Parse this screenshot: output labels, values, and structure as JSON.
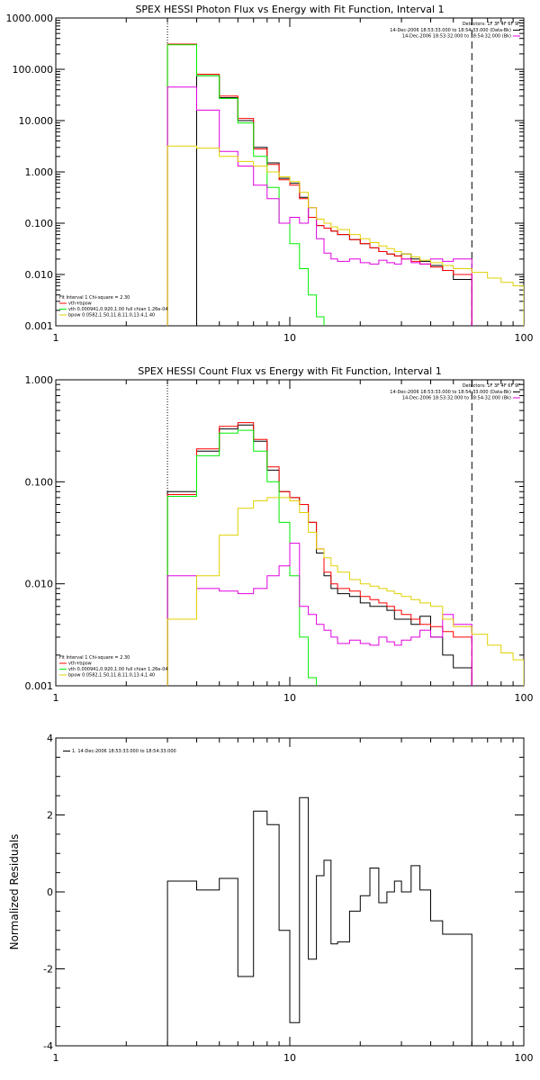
{
  "chart_data": [
    {
      "type": "line",
      "title": "SPEX HESSI Photon Flux vs Energy with Fit Function, Interval 1",
      "xscale": "log",
      "yscale": "log",
      "xlim": [
        1,
        100
      ],
      "ylim": [
        0.001,
        1000
      ],
      "x_ticks": [
        {
          "v": 1,
          "label": "1"
        },
        {
          "v": 10,
          "label": "10"
        },
        {
          "v": 100,
          "label": "100"
        }
      ],
      "y_ticks": [
        {
          "v": 0.001,
          "label": "0.001"
        },
        {
          "v": 0.01,
          "label": "0.010"
        },
        {
          "v": 0.1,
          "label": "0.100"
        },
        {
          "v": 1,
          "label": "1.000"
        },
        {
          "v": 10,
          "label": "10.000"
        },
        {
          "v": 100,
          "label": "100.000"
        },
        {
          "v": 1000,
          "label": "1000.000"
        }
      ],
      "dotted_line_x": 3,
      "dashed_line_x": 60,
      "legend_top": {
        "detectors": "Detectors: 1F 3F 4F 6F 9F",
        "entries": [
          {
            "text": "14-Dec-2006 18:53:33.000 to 18:54:33.000 (Data-Bk)",
            "color": "#000000"
          },
          {
            "text": "14-Dec-2006 18:53:32.000 to 18:54:32.000 (Bk)",
            "color": "#e000e0"
          }
        ]
      },
      "legend_bottom": {
        "header": "Fit Interval 1    Chi-square = 2.30",
        "entries": [
          {
            "text": "vth+bpow",
            "color": "#ff0000"
          },
          {
            "text": "vth 0.000941,0.920,1.00  full chian 1.26e-04",
            "color": "#00ee00"
          },
          {
            "text": "bpow 0.0582,1.50,11.8,11.0,13.4,1.40",
            "color": "#e0d000"
          }
        ]
      },
      "series": [
        {
          "color": "#000000",
          "edges": [
            3,
            4,
            5,
            6,
            7,
            8,
            9,
            10,
            11,
            12,
            13,
            14,
            15,
            16,
            18,
            20,
            22,
            24,
            26,
            28,
            30,
            33,
            36,
            40,
            45,
            50,
            60
          ],
          "values": [
            null,
            75,
            28,
            10,
            3,
            1.5,
            0.75,
            0.6,
            0.32,
            0.13,
            0.09,
            0.08,
            0.07,
            0.06,
            0.048,
            0.04,
            0.033,
            0.028,
            0.025,
            0.023,
            0.025,
            0.02,
            0.018,
            0.015,
            0.012,
            0.008
          ]
        },
        {
          "color": "#ff0000",
          "edges": [
            3,
            4,
            5,
            6,
            7,
            8,
            9,
            10,
            11,
            12,
            13,
            14,
            15,
            16,
            18,
            20,
            22,
            24,
            26,
            28,
            30,
            33,
            36,
            40,
            45,
            50,
            60
          ],
          "values": [
            310,
            80,
            30,
            11,
            2.8,
            1.4,
            0.7,
            0.55,
            0.3,
            0.13,
            0.09,
            0.08,
            0.07,
            0.06,
            0.048,
            0.04,
            0.033,
            0.028,
            0.025,
            0.023,
            0.02,
            0.018,
            0.016,
            0.014,
            0.012,
            0.01
          ]
        },
        {
          "color": "#00ee00",
          "edges": [
            3,
            4,
            5,
            6,
            7,
            8,
            9,
            10,
            11,
            12,
            13,
            14
          ],
          "values": [
            300,
            75,
            27,
            9,
            2,
            0.5,
            0.1,
            0.04,
            0.013,
            0.004,
            0.0015
          ]
        },
        {
          "color": "#e000e0",
          "edges": [
            3,
            4,
            5,
            6,
            7,
            8,
            9,
            10,
            11,
            12,
            13,
            14,
            15,
            16,
            18,
            20,
            22,
            24,
            26,
            28,
            30,
            33,
            36,
            40,
            45,
            50,
            60
          ],
          "values": [
            45,
            16,
            2.5,
            1.3,
            0.55,
            0.3,
            0.1,
            0.13,
            0.1,
            0.2,
            0.05,
            0.026,
            0.02,
            0.018,
            0.02,
            0.017,
            0.016,
            0.019,
            0.017,
            0.016,
            0.02,
            0.017,
            0.016,
            0.02,
            0.018,
            0.02
          ]
        },
        {
          "color": "#e0d000",
          "edges": [
            3,
            4,
            5,
            6,
            7,
            8,
            9,
            10,
            11,
            12,
            13,
            14,
            15,
            16,
            18,
            20,
            22,
            24,
            26,
            28,
            30,
            33,
            36,
            40,
            45,
            50,
            60,
            70,
            80,
            90,
            100
          ],
          "values": [
            3.2,
            2.9,
            2,
            1.6,
            1.3,
            1,
            0.8,
            0.65,
            0.4,
            0.2,
            0.12,
            0.1,
            0.085,
            0.075,
            0.06,
            0.05,
            0.042,
            0.036,
            0.032,
            0.028,
            0.025,
            0.022,
            0.019,
            0.017,
            0.015,
            0.013,
            0.011,
            0.0085,
            0.007,
            0.006
          ]
        }
      ]
    },
    {
      "type": "line",
      "title": "SPEX HESSI Count Flux vs Energy with Fit Function, Interval 1",
      "xscale": "log",
      "yscale": "log",
      "xlim": [
        1,
        100
      ],
      "ylim": [
        0.001,
        1
      ],
      "x_ticks": [
        {
          "v": 1,
          "label": "1"
        },
        {
          "v": 10,
          "label": "10"
        },
        {
          "v": 100,
          "label": "100"
        }
      ],
      "y_ticks": [
        {
          "v": 0.001,
          "label": "0.001"
        },
        {
          "v": 0.01,
          "label": "0.010"
        },
        {
          "v": 0.1,
          "label": "0.100"
        },
        {
          "v": 1,
          "label": "1.000"
        }
      ],
      "dotted_line_x": 3,
      "dashed_line_x": 60,
      "legend_top": {
        "detectors": "Detectors: 1F 3F 4F 6F 9F",
        "entries": [
          {
            "text": "14-Dec-2006 18:53:33.000 to 18:54:33.000 (Data-Bk)",
            "color": "#000000"
          },
          {
            "text": "14-Dec-2006 18:53:32.000 to 18:54:32.000 (Bk)",
            "color": "#e000e0"
          }
        ]
      },
      "legend_bottom": {
        "header": "Fit Interval 1    Chi-square = 2.30",
        "entries": [
          {
            "text": "vth+bpow",
            "color": "#ff0000"
          },
          {
            "text": "vth 0.000941,0.920,1.00  full chian 1.26e-04",
            "color": "#00ee00"
          },
          {
            "text": "bpow 0.0582,1.50,11.8,11.0,13.4,1.40",
            "color": "#e0d000"
          }
        ]
      },
      "series": [
        {
          "color": "#000000",
          "edges": [
            3,
            4,
            5,
            6,
            7,
            8,
            9,
            10,
            11,
            12,
            13,
            14,
            15,
            16,
            18,
            20,
            22,
            24,
            26,
            28,
            30,
            33,
            36,
            40,
            45,
            50,
            60
          ],
          "values": [
            0.08,
            0.2,
            0.33,
            0.36,
            0.25,
            0.13,
            0.08,
            0.07,
            0.06,
            0.04,
            0.02,
            0.012,
            0.009,
            0.008,
            0.0075,
            0.0065,
            0.006,
            0.006,
            0.0055,
            0.0045,
            0.0045,
            0.004,
            0.0048,
            0.003,
            0.002,
            0.0015
          ]
        },
        {
          "color": "#ff0000",
          "edges": [
            3,
            4,
            5,
            6,
            7,
            8,
            9,
            10,
            11,
            12,
            13,
            14,
            15,
            16,
            18,
            20,
            22,
            24,
            26,
            28,
            30,
            33,
            36,
            40,
            45,
            50,
            60
          ],
          "values": [
            0.075,
            0.21,
            0.35,
            0.38,
            0.26,
            0.14,
            0.08,
            0.07,
            0.06,
            0.04,
            0.022,
            0.013,
            0.01,
            0.009,
            0.0085,
            0.0075,
            0.007,
            0.0065,
            0.006,
            0.0055,
            0.005,
            0.0045,
            0.004,
            0.0038,
            0.0034,
            0.003
          ]
        },
        {
          "color": "#00ee00",
          "edges": [
            3,
            4,
            5,
            6,
            7,
            8,
            9,
            10,
            11,
            12,
            13
          ],
          "values": [
            0.072,
            0.18,
            0.3,
            0.32,
            0.2,
            0.1,
            0.04,
            0.012,
            0.003,
            0.0012
          ]
        },
        {
          "color": "#e000e0",
          "edges": [
            3,
            4,
            5,
            6,
            7,
            8,
            9,
            10,
            11,
            12,
            13,
            14,
            15,
            16,
            18,
            20,
            22,
            24,
            26,
            28,
            30,
            33,
            36,
            40,
            45,
            50,
            60
          ],
          "values": [
            0.012,
            0.009,
            0.0085,
            0.008,
            0.009,
            0.012,
            0.015,
            0.025,
            0.006,
            0.005,
            0.004,
            0.0035,
            0.003,
            0.0026,
            0.0028,
            0.0026,
            0.0025,
            0.003,
            0.0027,
            0.0025,
            0.0028,
            0.003,
            0.0035,
            0.003,
            0.005,
            0.004
          ]
        },
        {
          "color": "#e0d000",
          "edges": [
            3,
            4,
            5,
            6,
            7,
            8,
            9,
            10,
            11,
            12,
            13,
            14,
            15,
            16,
            18,
            20,
            22,
            24,
            26,
            28,
            30,
            33,
            36,
            40,
            45,
            50,
            60,
            70,
            80,
            90,
            100
          ],
          "values": [
            0.0045,
            0.012,
            0.03,
            0.055,
            0.065,
            0.07,
            0.07,
            0.065,
            0.05,
            0.032,
            0.022,
            0.018,
            0.015,
            0.013,
            0.011,
            0.01,
            0.0095,
            0.009,
            0.0085,
            0.008,
            0.0075,
            0.007,
            0.0065,
            0.006,
            0.0045,
            0.0038,
            0.0032,
            0.0025,
            0.0021,
            0.0018
          ]
        }
      ]
    },
    {
      "type": "line",
      "title": "",
      "ylabel": "Normalized Residuals",
      "xscale": "log",
      "yscale": "linear",
      "xlim": [
        1,
        100
      ],
      "ylim": [
        -4,
        4
      ],
      "x_ticks": [
        {
          "v": 1,
          "label": "1"
        },
        {
          "v": 10,
          "label": "10"
        },
        {
          "v": 100,
          "label": "100"
        }
      ],
      "y_ticks": [
        {
          "v": -4,
          "label": "-4"
        },
        {
          "v": -2,
          "label": "-2"
        },
        {
          "v": 0,
          "label": "0"
        },
        {
          "v": 2,
          "label": "2"
        },
        {
          "v": 4,
          "label": "4"
        }
      ],
      "legend": {
        "text": "1. 14-Dec-2006 18:53:33.000 to 18:54:33.000",
        "color": "#000000"
      },
      "series": [
        {
          "color": "#000000",
          "edges": [
            3,
            4,
            5,
            6,
            7,
            8,
            9,
            10,
            11,
            12,
            13,
            14,
            15,
            16,
            18,
            20,
            22,
            24,
            26,
            28,
            30,
            33,
            36,
            40,
            45,
            50,
            60
          ],
          "values": [
            0.28,
            0.05,
            0.35,
            -2.2,
            2.1,
            1.75,
            -1.0,
            -3.4,
            2.45,
            -1.75,
            0.42,
            0.82,
            -1.35,
            -1.3,
            -0.5,
            -0.1,
            0.62,
            -0.28,
            0.0,
            0.28,
            0.0,
            0.68,
            0.05,
            -0.75,
            -1.1,
            -1.1
          ]
        }
      ]
    }
  ]
}
